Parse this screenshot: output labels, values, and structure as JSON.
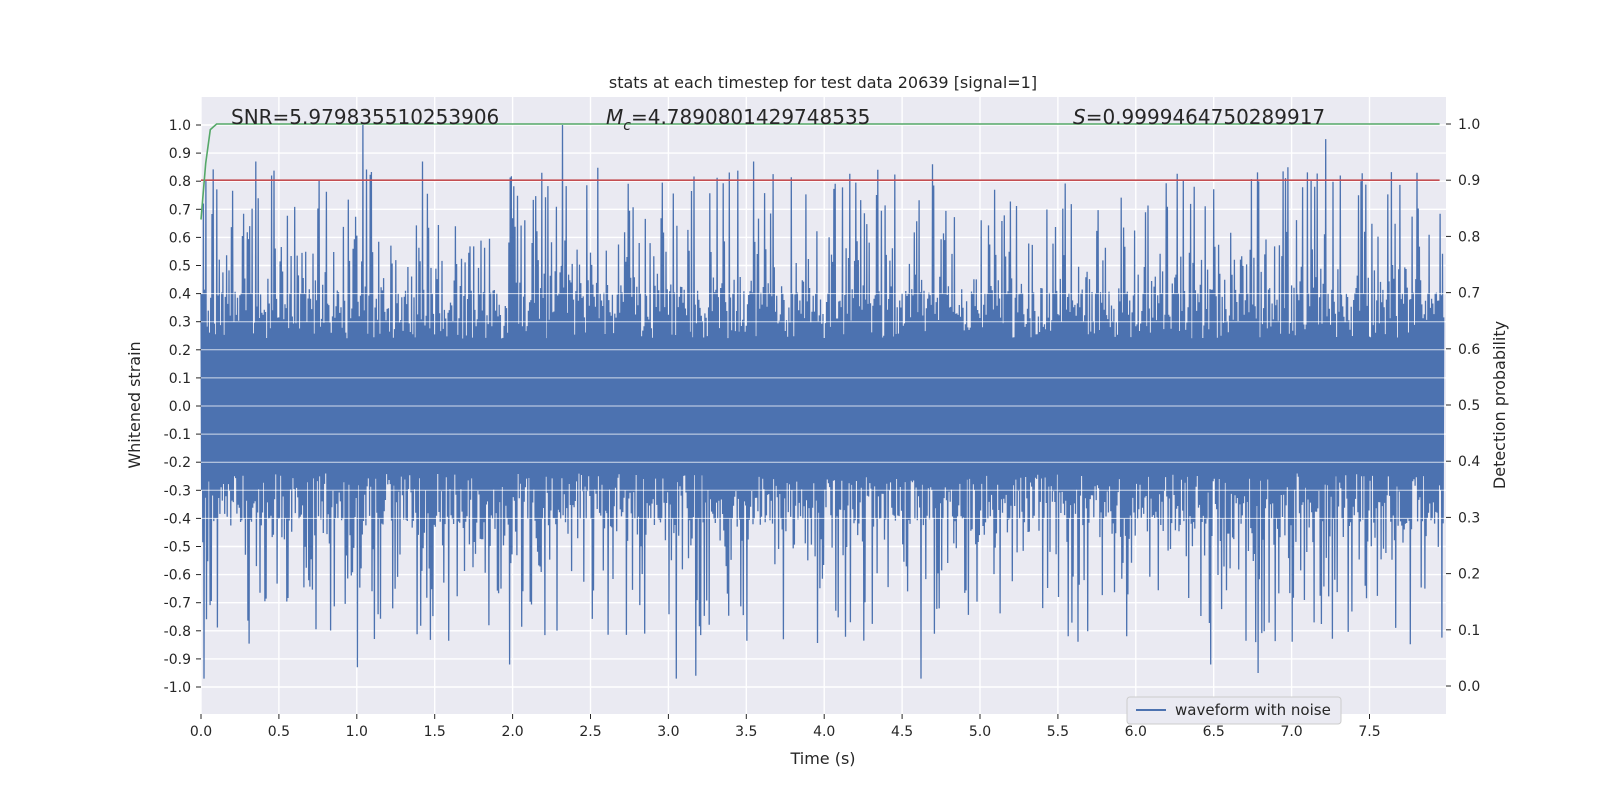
{
  "chart_data": {
    "type": "line",
    "title": "stats at each timestep for test data 20639 [signal=1]",
    "xlabel": "Time (s)",
    "ylabel": "Whitened strain",
    "y2label": "Detection probability",
    "xlim": [
      0.0,
      8.0
    ],
    "ylim": [
      -1.08,
      1.1
    ],
    "y2lim": [
      -0.05,
      1.04
    ],
    "xticks": [
      "0.0",
      "0.5",
      "1.0",
      "1.5",
      "2.0",
      "2.5",
      "3.0",
      "3.5",
      "4.0",
      "4.5",
      "5.0",
      "5.5",
      "6.0",
      "6.5",
      "7.0",
      "7.5"
    ],
    "yticks": [
      "1.0",
      "0.9",
      "0.8",
      "0.7",
      "0.6",
      "0.5",
      "0.4",
      "0.3",
      "0.2",
      "0.1",
      "0.0",
      "-0.1",
      "-0.2",
      "-0.3",
      "-0.4",
      "-0.5",
      "-0.6",
      "-0.7",
      "-0.8",
      "-0.9",
      "-1.0"
    ],
    "y2ticks": [
      "1.0",
      "0.9",
      "0.8",
      "0.7",
      "0.6",
      "0.5",
      "0.4",
      "0.3",
      "0.2",
      "0.1",
      "0.0"
    ],
    "grid": true,
    "legend_position": "lower-right",
    "annotations": {
      "snr": "SNR=5.979835510253906",
      "mc_symbol": "M",
      "mc_sub": "c",
      "mc_value": "=4.7890801429748535",
      "s_symbol": "S",
      "s_value": "=0.9999464750289917"
    },
    "series": [
      {
        "name": "waveform with noise",
        "color": "#4c72b0",
        "axis": "left",
        "sample_rate_hz": 256,
        "core_amplitude": 0.4,
        "peak_highs": [
          [
            0.35,
            0.87
          ],
          [
            1.04,
            1.0
          ],
          [
            1.42,
            0.87
          ],
          [
            2.32,
            1.0
          ],
          [
            3.55,
            0.87
          ],
          [
            4.7,
            0.86
          ],
          [
            6.98,
            0.85
          ],
          [
            7.22,
            0.95
          ],
          [
            7.45,
            0.8
          ]
        ],
        "peak_lows": [
          [
            0.02,
            -0.97
          ],
          [
            1.0,
            -0.93
          ],
          [
            1.98,
            -0.92
          ],
          [
            3.05,
            -0.97
          ],
          [
            3.17,
            -0.96
          ],
          [
            4.62,
            -0.97
          ],
          [
            6.48,
            -0.92
          ],
          [
            6.78,
            -0.95
          ]
        ]
      },
      {
        "color": "#c44e52",
        "axis": "right",
        "x": [
          0.0,
          7.95
        ],
        "y": [
          0.9,
          0.9
        ]
      },
      {
        "color": "#55a868",
        "axis": "right",
        "x": [
          0.0,
          0.03,
          0.06,
          0.1,
          0.2,
          1.0,
          3.0,
          5.0,
          7.0,
          7.95
        ],
        "y": [
          0.83,
          0.93,
          0.99,
          1.0,
          1.0,
          1.0,
          1.0,
          1.0,
          1.0,
          1.0
        ]
      }
    ]
  }
}
